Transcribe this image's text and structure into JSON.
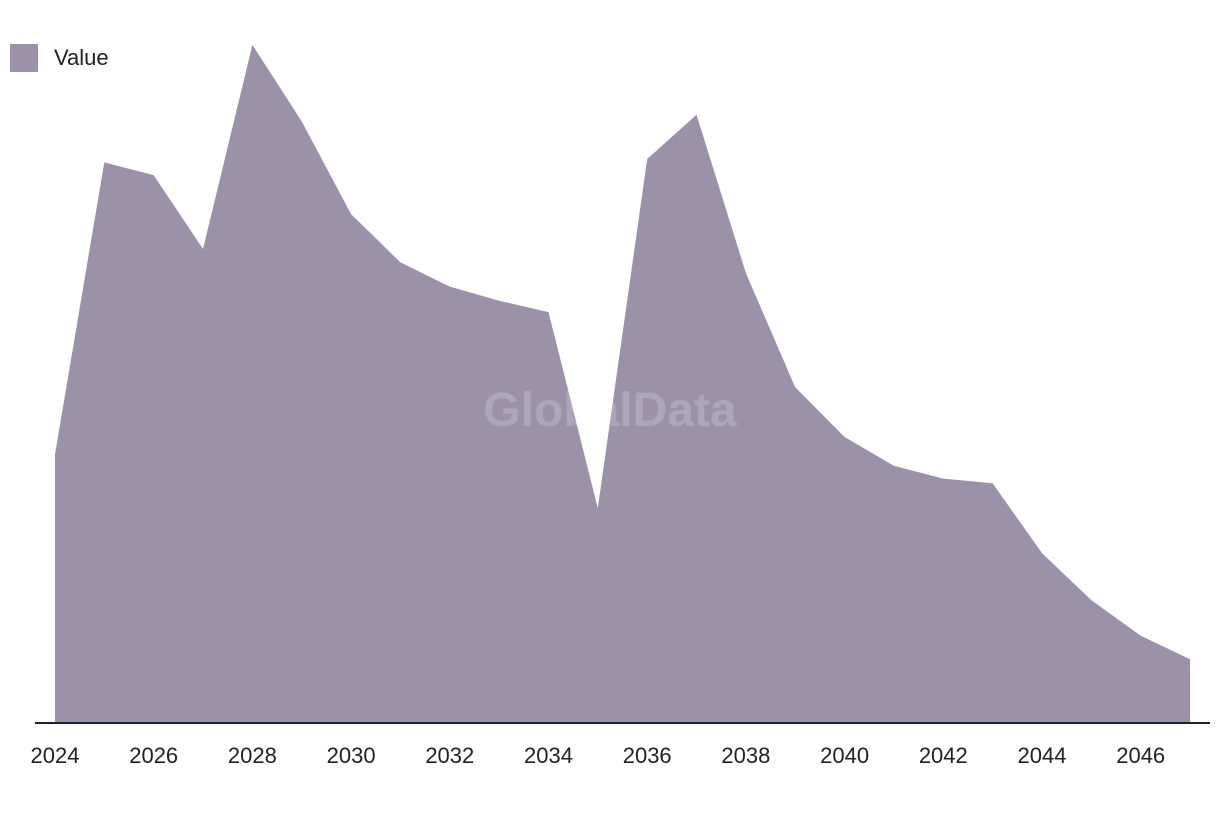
{
  "chart_data": {
    "type": "area",
    "x": [
      2024,
      2025,
      2026,
      2027,
      2028,
      2029,
      2030,
      2031,
      2032,
      2033,
      2034,
      2035,
      2036,
      2037,
      2038,
      2039,
      2040,
      2041,
      2042,
      2043,
      2044,
      2045,
      2046,
      2047
    ],
    "series": [
      {
        "name": "Value",
        "values": [
          40.0,
          83.5,
          81.6,
          70.6,
          101.0,
          89.6,
          75.8,
          68.6,
          65.0,
          62.9,
          61.2,
          32.0,
          84.0,
          90.6,
          67.0,
          50.0,
          42.6,
          38.3,
          36.4,
          35.7,
          25.3,
          18.3,
          13.0,
          9.5
        ]
      }
    ],
    "xticks": [
      "2024",
      "2026",
      "2028",
      "2030",
      "2032",
      "2034",
      "2036",
      "2038",
      "2040",
      "2042",
      "2044",
      "2046"
    ],
    "ylim": [
      0,
      105
    ],
    "grid": false,
    "legend_position": "top-left",
    "colors": {
      "series": "#9b92aa",
      "axis": "#222222"
    },
    "watermark": "GlobalData"
  }
}
